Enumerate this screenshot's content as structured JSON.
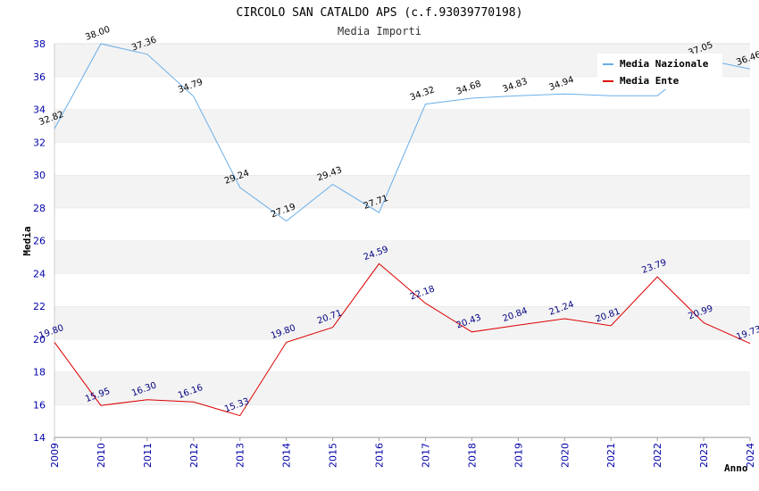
{
  "chart_data": {
    "type": "line",
    "title": "CIRCOLO SAN CATALDO APS (c.f.93039770198)",
    "subtitle": "Media Importi",
    "xlabel": "Anno",
    "ylabel": "Media",
    "ylim": [
      14,
      38
    ],
    "yticks": [
      14,
      16,
      18,
      20,
      22,
      24,
      26,
      28,
      30,
      32,
      34,
      36,
      38
    ],
    "x": [
      "2009",
      "2010",
      "2011",
      "2012",
      "2013",
      "2014",
      "2015",
      "2016",
      "2017",
      "2018",
      "2019",
      "2020",
      "2021",
      "2022",
      "2023",
      "2024"
    ],
    "grid": "horizontal alternating bands",
    "legend_position": "top-right",
    "series": [
      {
        "name": "Media Nazionale",
        "color": "#6aaee8",
        "label_color": "#000000",
        "values": [
          32.82,
          38.0,
          37.36,
          34.79,
          29.24,
          27.19,
          29.43,
          27.71,
          34.32,
          34.68,
          34.83,
          34.94,
          34.83,
          34.83,
          37.05,
          36.46
        ],
        "labels": [
          "32.82",
          "38.00",
          "37.36",
          "34.79",
          "29.24",
          "27.19",
          "29.43",
          "27.71",
          "34.32",
          "34.68",
          "34.83",
          "34.94",
          "",
          "",
          "37.05",
          "36.46"
        ]
      },
      {
        "name": "Media Ente",
        "color": "#dd0000",
        "label_color": "#000080",
        "values": [
          19.8,
          15.95,
          16.3,
          16.16,
          15.33,
          19.8,
          20.71,
          24.59,
          22.18,
          20.43,
          20.84,
          21.24,
          20.81,
          23.79,
          20.99,
          19.73
        ],
        "labels": [
          "19.80",
          "15.95",
          "16.30",
          "16.16",
          "15.33",
          "19.80",
          "20.71",
          "24.59",
          "22.18",
          "20.43",
          "20.84",
          "21.24",
          "20.81",
          "23.79",
          "20.99",
          "19.73"
        ]
      }
    ]
  }
}
